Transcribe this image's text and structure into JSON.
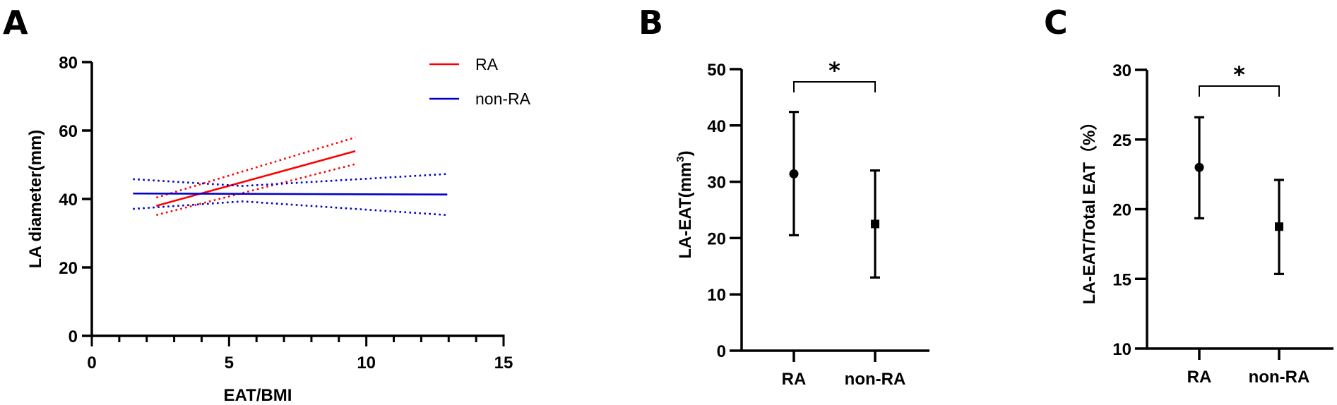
{
  "figure": {
    "panels": [
      "A",
      "B",
      "C"
    ]
  },
  "chart_data": [
    {
      "panel": "A",
      "type": "line",
      "title": "",
      "xlabel": "EAT/BMI",
      "ylabel": "LA diameter(mm)",
      "xlim": [
        0,
        15
      ],
      "ylim": [
        0,
        80
      ],
      "xticks": [
        "0",
        "5",
        "10",
        "15"
      ],
      "yticks": [
        "0",
        "20",
        "40",
        "60",
        "80"
      ],
      "grid": false,
      "legend_position": "top-right",
      "series": [
        {
          "name": "RA",
          "color": "#ff0000",
          "fit": {
            "x": [
              2.35,
              9.6
            ],
            "y": [
              38.0,
              54.0
            ]
          },
          "ci_upper": {
            "x": [
              2.35,
              9.6
            ],
            "y": [
              40.4,
              58.0
            ]
          },
          "ci_lower": {
            "x": [
              2.35,
              9.6
            ],
            "y": [
              35.3,
              50.2
            ]
          }
        },
        {
          "name": "non-RA",
          "color": "#0000cc",
          "fit": {
            "x": [
              1.5,
              12.95
            ],
            "y": [
              41.6,
              41.3
            ]
          },
          "ci_upper": {
            "x": [
              1.5,
              5.5,
              12.95
            ],
            "y": [
              45.8,
              43.8,
              47.3
            ]
          },
          "ci_lower": {
            "x": [
              1.5,
              5.5,
              12.95
            ],
            "y": [
              37.1,
              39.3,
              35.3
            ]
          }
        }
      ]
    },
    {
      "panel": "B",
      "type": "scatter",
      "title": "",
      "xlabel": "",
      "ylabel": "LA-EAT(mm3)",
      "ylabel_main": "LA-EAT(mm",
      "ylabel_sup": "3",
      "ylabel_tail": ")",
      "categories": [
        "RA",
        "non-RA"
      ],
      "ylim": [
        0,
        50
      ],
      "yticks": [
        "0",
        "10",
        "20",
        "30",
        "40",
        "50"
      ],
      "series": [
        {
          "name": "mean",
          "values": [
            31.4,
            22.5
          ]
        },
        {
          "name": "upper",
          "values": [
            42.4,
            32.0
          ]
        },
        {
          "name": "lower",
          "values": [
            20.5,
            13.0
          ]
        }
      ],
      "markers": [
        "circle",
        "square"
      ],
      "significance": {
        "pair": [
          "RA",
          "non-RA"
        ],
        "label": "*"
      }
    },
    {
      "panel": "C",
      "type": "scatter",
      "title": "",
      "xlabel": "",
      "ylabel": "LA-EAT/Total EAT（%）",
      "categories": [
        "RA",
        "non-RA"
      ],
      "ylim": [
        10,
        30
      ],
      "yticks": [
        "10",
        "15",
        "20",
        "25",
        "30"
      ],
      "series": [
        {
          "name": "mean",
          "values": [
            23.0,
            18.75
          ]
        },
        {
          "name": "upper",
          "values": [
            26.6,
            22.1
          ]
        },
        {
          "name": "lower",
          "values": [
            19.35,
            15.35
          ]
        }
      ],
      "markers": [
        "circle",
        "square"
      ],
      "significance": {
        "pair": [
          "RA",
          "non-RA"
        ],
        "label": "*"
      }
    }
  ]
}
